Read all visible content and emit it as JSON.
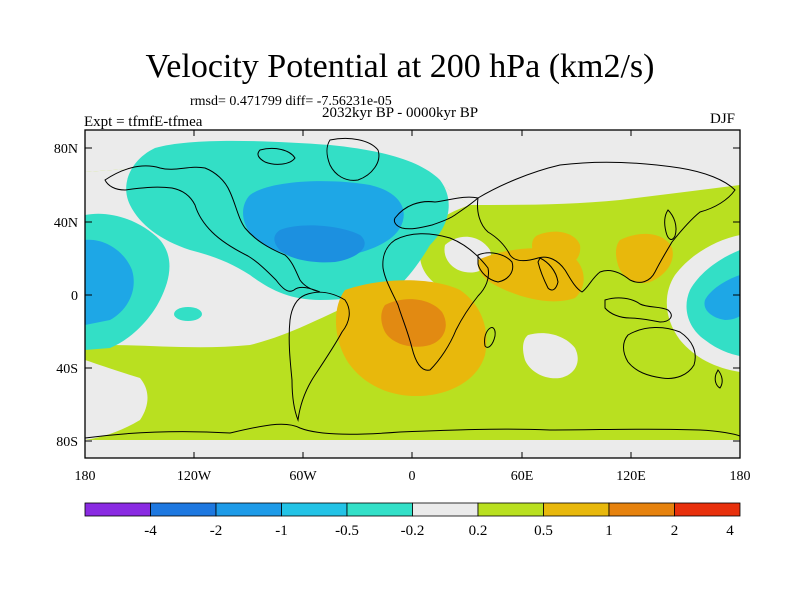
{
  "header": {
    "title": "Velocity Potential at 200 hPa (km2/s)",
    "stats": "rmsd= 0.471799 diff= -7.56231e-05",
    "period": "2032kyr BP - 0000kyr BP",
    "experiment": "Expt = tfmfE-tfmea",
    "season": "DJF"
  },
  "map": {
    "projection": "cylindrical equidistant",
    "lat_labels": [
      "80N",
      "40N",
      "0",
      "40S",
      "80S"
    ],
    "lon_labels": [
      "180",
      "120W",
      "60W",
      "0",
      "60E",
      "120E",
      "180"
    ],
    "land_color": "#eeeeee",
    "coastline_color": "#000000"
  },
  "colorbar": {
    "labels": [
      "-4",
      "-2",
      "-1",
      "-0.5",
      "-0.2",
      "0.2",
      "0.5",
      "1",
      "2",
      "4"
    ],
    "colors": [
      "#8a2be2",
      "#1e78e0",
      "#1e9be8",
      "#23c3e6",
      "#33e0c8",
      "#ebebeb",
      "#b9e020",
      "#e8b80c",
      "#e6820e",
      "#e8300c"
    ]
  },
  "field_colors": {
    "neg_0_5": "#1ea7e6",
    "neg_0_2": "#33dfc6",
    "neutral": "#ebebeb",
    "pos_0_2": "#b9e020",
    "pos_0_5": "#e8b80c",
    "pos_1": "#e28a12"
  }
}
